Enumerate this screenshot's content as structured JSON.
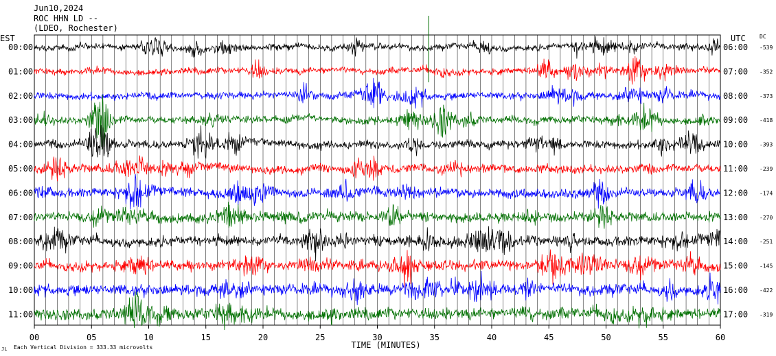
{
  "header": {
    "date": "Jun10,2024",
    "station": "ROC HHN LD --",
    "network": "(LDEO, Rochester)"
  },
  "labels": {
    "left_timezone": "EST",
    "right_timezone": "UTC",
    "dc_header": "DC",
    "xlabel": "TIME (MINUTES)",
    "footer_prefix": "JL",
    "footer": "Each Vertical Division =  333.33 microvolts"
  },
  "colors": {
    "trace_cycle": [
      "#000000",
      "#ff0000",
      "#0000ff",
      "#007000"
    ],
    "grid": "#000000",
    "event_marker": "#007000"
  },
  "chart_data": {
    "type": "line",
    "title": "",
    "xlabel": "TIME (MINUTES)",
    "xlim": [
      0,
      60
    ],
    "x_ticks": [
      0,
      5,
      10,
      15,
      20,
      25,
      30,
      35,
      40,
      45,
      50,
      55,
      60
    ],
    "x_tick_labels": [
      "00",
      "05",
      "10",
      "15",
      "20",
      "25",
      "30",
      "35",
      "40",
      "45",
      "50",
      "55",
      "60"
    ],
    "vertical_gridlines_every_minutes": 1,
    "event_marker_minute": 34.5,
    "rows": [
      {
        "est": "00:00",
        "utc": "06:00",
        "dc": "-539"
      },
      {
        "est": "01:00",
        "utc": "07:00",
        "dc": "-352"
      },
      {
        "est": "02:00",
        "utc": "08:00",
        "dc": "-373"
      },
      {
        "est": "03:00",
        "utc": "09:00",
        "dc": "-418"
      },
      {
        "est": "04:00",
        "utc": "10:00",
        "dc": "-393"
      },
      {
        "est": "05:00",
        "utc": "11:00",
        "dc": "-239"
      },
      {
        "est": "06:00",
        "utc": "12:00",
        "dc": "-174"
      },
      {
        "est": "07:00",
        "utc": "13:00",
        "dc": "-270"
      },
      {
        "est": "08:00",
        "utc": "14:00",
        "dc": "-251"
      },
      {
        "est": "09:00",
        "utc": "15:00",
        "dc": "-145"
      },
      {
        "est": "10:00",
        "utc": "16:00",
        "dc": "-422"
      },
      {
        "est": "11:00",
        "utc": "17:00",
        "dc": "-319"
      }
    ]
  }
}
